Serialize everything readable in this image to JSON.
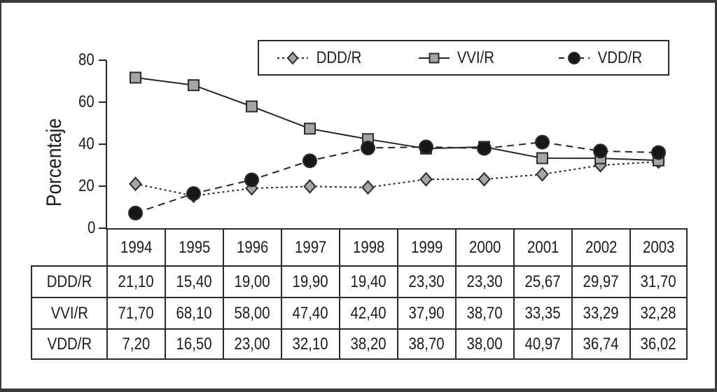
{
  "figure": {
    "background": "#ffffff",
    "frame_color": "#3a3a3a",
    "line_color": "#262626",
    "gray_marker_color": "#a5a5a5",
    "black_marker_color": "#171717"
  },
  "chart_data": {
    "type": "line",
    "title": "",
    "xlabel": "",
    "ylabel": "Porcentaje",
    "ylim": [
      0,
      80
    ],
    "yticks": [
      0,
      20,
      40,
      60,
      80
    ],
    "grid": false,
    "legend_position": "top",
    "categories": [
      "1994",
      "1995",
      "1996",
      "1997",
      "1998",
      "1999",
      "2000",
      "2001",
      "2002",
      "2003"
    ],
    "series": [
      {
        "name": "DDD/R",
        "marker": "diamond",
        "line": "dotted",
        "marker_fill": "#a5a5a5",
        "values": [
          21.1,
          15.4,
          19.0,
          19.9,
          19.4,
          23.3,
          23.3,
          25.67,
          29.97,
          31.7
        ]
      },
      {
        "name": "VVI/R",
        "marker": "square",
        "line": "solid",
        "marker_fill": "#a5a5a5",
        "values": [
          71.7,
          68.1,
          58.0,
          47.4,
          42.4,
          37.9,
          38.7,
          33.35,
          33.29,
          32.28
        ]
      },
      {
        "name": "VDD/R",
        "marker": "circle",
        "line": "dashed",
        "marker_fill": "#171717",
        "values": [
          7.2,
          16.5,
          23.0,
          32.1,
          38.2,
          38.7,
          38.0,
          40.97,
          36.74,
          36.02
        ]
      }
    ]
  },
  "table": {
    "corner_label": "",
    "columns": [
      "1994",
      "1995",
      "1996",
      "1997",
      "1998",
      "1999",
      "2000",
      "2001",
      "2002",
      "2003"
    ],
    "rows": [
      {
        "label": "DDD/R",
        "values": [
          "21,10",
          "15,40",
          "19,00",
          "19,90",
          "19,40",
          "23,30",
          "23,30",
          "25,67",
          "29,97",
          "31,70"
        ]
      },
      {
        "label": "VVI/R",
        "values": [
          "71,70",
          "68,10",
          "58,00",
          "47,40",
          "42,40",
          "37,90",
          "38,70",
          "33,35",
          "33,29",
          "32,28"
        ]
      },
      {
        "label": "VDD/R",
        "values": [
          "7,20",
          "16,50",
          "23,00",
          "32,10",
          "38,20",
          "38,70",
          "38,00",
          "40,97",
          "36,74",
          "36,02"
        ]
      }
    ]
  }
}
